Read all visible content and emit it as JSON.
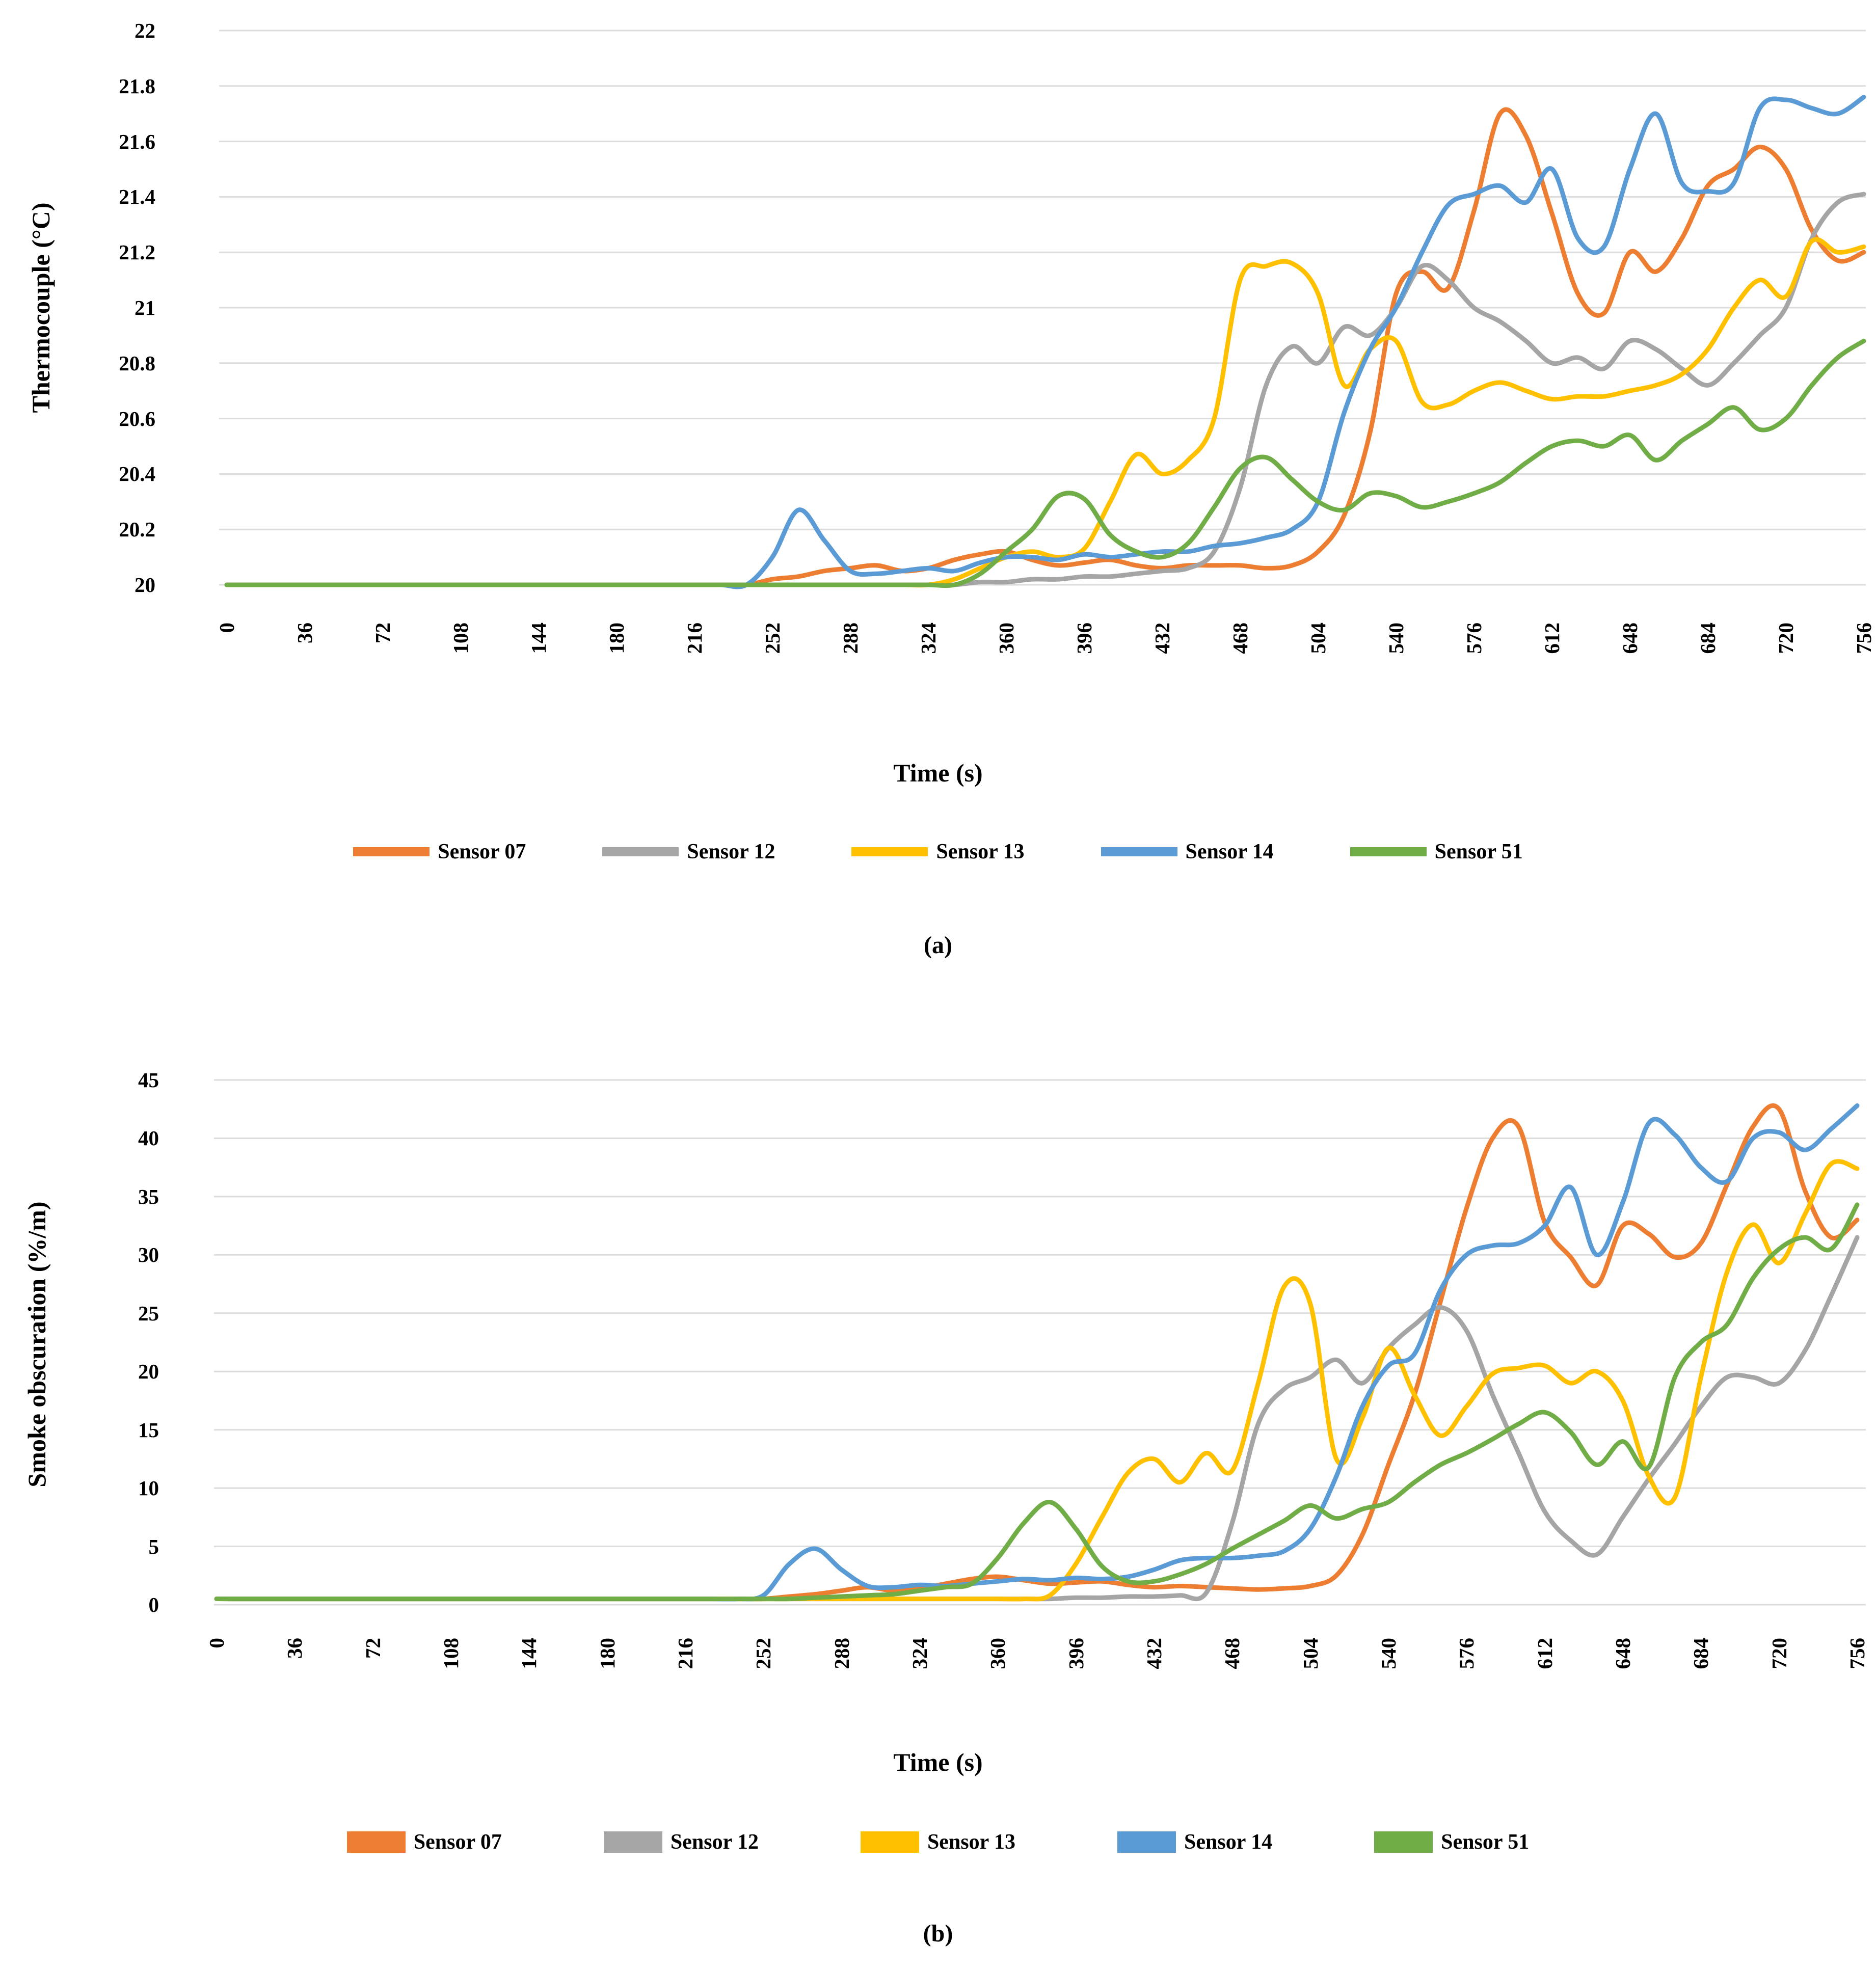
{
  "figure": {
    "background": "#ffffff",
    "text_color": "#000000",
    "gridline_color": "#DCDCDC"
  },
  "chart_data": [
    {
      "id": "a",
      "type": "line",
      "caption": "(a)",
      "xlabel": "Time (s)",
      "ylabel": "Thermocouple (°C)",
      "ylim": [
        20,
        22
      ],
      "xlim": [
        0,
        756
      ],
      "grid": true,
      "legend_position": "bottom",
      "y_tick_values": [
        22,
        21.8,
        21.6,
        21.4,
        21.2,
        21,
        20.8,
        20.6,
        20.4,
        20.2,
        20
      ],
      "y_tick_labels": [
        "22",
        "21.8",
        "21.6",
        "21.4",
        "21.2",
        "21",
        "20.8",
        "20.6",
        "20.4",
        "20.2",
        "20"
      ],
      "x_tick_values": [
        0,
        36,
        72,
        108,
        144,
        180,
        216,
        252,
        288,
        324,
        360,
        396,
        432,
        468,
        504,
        540,
        576,
        612,
        648,
        684,
        720,
        756
      ],
      "x_tick_labels": [
        "0",
        "36",
        "72",
        "108",
        "144",
        "180",
        "216",
        "252",
        "288",
        "324",
        "360",
        "396",
        "432",
        "468",
        "504",
        "540",
        "576",
        "612",
        "648",
        "684",
        "720",
        "756"
      ],
      "x": [
        0,
        12,
        24,
        36,
        48,
        60,
        72,
        84,
        96,
        108,
        120,
        132,
        144,
        156,
        168,
        180,
        192,
        204,
        216,
        228,
        240,
        252,
        264,
        276,
        288,
        300,
        312,
        324,
        336,
        348,
        360,
        372,
        384,
        396,
        408,
        420,
        432,
        444,
        456,
        468,
        480,
        492,
        504,
        516,
        528,
        540,
        552,
        564,
        576,
        588,
        600,
        612,
        624,
        636,
        648,
        660,
        672,
        684,
        696,
        708,
        720,
        732,
        744,
        756
      ],
      "series": [
        {
          "name": "Sensor 07",
          "color": "#ED7D31",
          "values": [
            20,
            20,
            20,
            20,
            20,
            20,
            20,
            20,
            20,
            20,
            20,
            20,
            20,
            20,
            20,
            20,
            20,
            20,
            20,
            20,
            20,
            20.02,
            20.03,
            20.05,
            20.06,
            20.07,
            20.05,
            20.06,
            20.09,
            20.11,
            20.12,
            20.09,
            20.07,
            20.08,
            20.09,
            20.07,
            20.06,
            20.07,
            20.07,
            20.07,
            20.06,
            20.07,
            20.12,
            20.25,
            20.55,
            21.05,
            21.13,
            21.07,
            21.35,
            21.7,
            21.62,
            21.34,
            21.05,
            20.98,
            21.2,
            21.13,
            21.25,
            21.44,
            21.5,
            21.58,
            21.5,
            21.28,
            21.17,
            21.2
          ]
        },
        {
          "name": "Sensor 12",
          "color": "#A5A5A5",
          "values": [
            20,
            20,
            20,
            20,
            20,
            20,
            20,
            20,
            20,
            20,
            20,
            20,
            20,
            20,
            20,
            20,
            20,
            20,
            20,
            20,
            20,
            20,
            20,
            20,
            20,
            20,
            20,
            20,
            20,
            20.01,
            20.01,
            20.02,
            20.02,
            20.03,
            20.03,
            20.04,
            20.05,
            20.06,
            20.12,
            20.35,
            20.72,
            20.86,
            20.8,
            20.93,
            20.9,
            21.0,
            21.15,
            21.1,
            21.0,
            20.95,
            20.88,
            20.8,
            20.82,
            20.78,
            20.88,
            20.85,
            20.78,
            20.72,
            20.8,
            20.9,
            21.0,
            21.25,
            21.38,
            21.41
          ]
        },
        {
          "name": "Sensor 13",
          "color": "#FFC000",
          "values": [
            20,
            20,
            20,
            20,
            20,
            20,
            20,
            20,
            20,
            20,
            20,
            20,
            20,
            20,
            20,
            20,
            20,
            20,
            20,
            20,
            20,
            20,
            20,
            20,
            20,
            20,
            20,
            20,
            20.02,
            20.06,
            20.1,
            20.12,
            20.1,
            20.13,
            20.3,
            20.47,
            20.4,
            20.45,
            20.6,
            21.1,
            21.15,
            21.16,
            21.05,
            20.72,
            20.85,
            20.88,
            20.66,
            20.65,
            20.7,
            20.73,
            20.7,
            20.67,
            20.68,
            20.68,
            20.7,
            20.72,
            20.76,
            20.85,
            21.0,
            21.1,
            21.04,
            21.24,
            21.2,
            21.22
          ]
        },
        {
          "name": "Sensor 14",
          "color": "#5B9BD5",
          "values": [
            20,
            20,
            20,
            20,
            20,
            20,
            20,
            20,
            20,
            20,
            20,
            20,
            20,
            20,
            20,
            20,
            20,
            20,
            20,
            20,
            20,
            20.1,
            20.27,
            20.16,
            20.05,
            20.04,
            20.05,
            20.06,
            20.05,
            20.08,
            20.1,
            20.1,
            20.09,
            20.11,
            20.1,
            20.11,
            20.12,
            20.12,
            20.14,
            20.15,
            20.17,
            20.2,
            20.3,
            20.62,
            20.85,
            21.0,
            21.2,
            21.37,
            21.41,
            21.44,
            21.38,
            21.5,
            21.25,
            21.22,
            21.5,
            21.7,
            21.45,
            21.42,
            21.45,
            21.72,
            21.75,
            21.72,
            21.7,
            21.76
          ]
        },
        {
          "name": "Sensor 51",
          "color": "#70AD47",
          "values": [
            20,
            20,
            20,
            20,
            20,
            20,
            20,
            20,
            20,
            20,
            20,
            20,
            20,
            20,
            20,
            20,
            20,
            20,
            20,
            20,
            20,
            20,
            20,
            20,
            20,
            20,
            20,
            20,
            20,
            20.04,
            20.12,
            20.2,
            20.32,
            20.31,
            20.18,
            20.12,
            20.1,
            20.15,
            20.28,
            20.42,
            20.46,
            20.38,
            20.3,
            20.27,
            20.33,
            20.32,
            20.28,
            20.3,
            20.33,
            20.37,
            20.44,
            20.5,
            20.52,
            20.5,
            20.54,
            20.45,
            20.52,
            20.58,
            20.64,
            20.56,
            20.6,
            20.72,
            20.82,
            20.88
          ]
        }
      ]
    },
    {
      "id": "b",
      "type": "line",
      "caption": "(b)",
      "xlabel": "Time (s)",
      "ylabel": "Smoke obscuration (%/m)",
      "ylim": [
        0,
        45
      ],
      "xlim": [
        0,
        756
      ],
      "grid": true,
      "legend_position": "bottom",
      "y_tick_values": [
        45,
        40,
        35,
        30,
        25,
        20,
        15,
        10,
        5,
        0
      ],
      "y_tick_labels": [
        "45",
        "40",
        "35",
        "30",
        "25",
        "20",
        "15",
        "10",
        "5",
        "0"
      ],
      "x_tick_values": [
        0,
        36,
        72,
        108,
        144,
        180,
        216,
        252,
        288,
        324,
        360,
        396,
        432,
        468,
        504,
        540,
        576,
        612,
        648,
        684,
        720,
        756
      ],
      "x_tick_labels": [
        "0",
        "36",
        "72",
        "108",
        "144",
        "180",
        "216",
        "252",
        "288",
        "324",
        "360",
        "396",
        "432",
        "468",
        "504",
        "540",
        "576",
        "612",
        "648",
        "684",
        "720",
        "756"
      ],
      "x": [
        0,
        12,
        24,
        36,
        48,
        60,
        72,
        84,
        96,
        108,
        120,
        132,
        144,
        156,
        168,
        180,
        192,
        204,
        216,
        228,
        240,
        252,
        264,
        276,
        288,
        300,
        312,
        324,
        336,
        348,
        360,
        372,
        384,
        396,
        408,
        420,
        432,
        444,
        456,
        468,
        480,
        492,
        504,
        516,
        528,
        540,
        552,
        564,
        576,
        588,
        600,
        612,
        624,
        636,
        648,
        660,
        672,
        684,
        696,
        708,
        720,
        732,
        744,
        756
      ],
      "series": [
        {
          "name": "Sensor 07",
          "color": "#ED7D31",
          "values": [
            0.5,
            0.5,
            0.5,
            0.5,
            0.5,
            0.5,
            0.5,
            0.5,
            0.5,
            0.5,
            0.5,
            0.5,
            0.5,
            0.5,
            0.5,
            0.5,
            0.5,
            0.5,
            0.5,
            0.5,
            0.5,
            0.5,
            0.7,
            0.9,
            1.2,
            1.5,
            1.2,
            1.4,
            1.8,
            2.2,
            2.4,
            2.1,
            1.8,
            1.9,
            2,
            1.7,
            1.5,
            1.6,
            1.5,
            1.4,
            1.3,
            1.4,
            1.6,
            2.5,
            6,
            12,
            18,
            26,
            34,
            40,
            41,
            32.8,
            29.8,
            27.4,
            32.5,
            31.8,
            29.8,
            31,
            36,
            41,
            42.5,
            35.5,
            31.5,
            33
          ]
        },
        {
          "name": "Sensor 12",
          "color": "#A5A5A5",
          "values": [
            0.5,
            0.5,
            0.5,
            0.5,
            0.5,
            0.5,
            0.5,
            0.5,
            0.5,
            0.5,
            0.5,
            0.5,
            0.5,
            0.5,
            0.5,
            0.5,
            0.5,
            0.5,
            0.5,
            0.5,
            0.5,
            0.5,
            0.5,
            0.5,
            0.5,
            0.5,
            0.5,
            0.5,
            0.5,
            0.5,
            0.5,
            0.5,
            0.5,
            0.6,
            0.6,
            0.7,
            0.7,
            0.8,
            1,
            7,
            15.5,
            18.5,
            19.5,
            21,
            19,
            22,
            24,
            25.5,
            23.5,
            18,
            13,
            8,
            5.5,
            4.3,
            7.5,
            10.8,
            13.8,
            17,
            19.5,
            19.5,
            19,
            21.8,
            26.5,
            31.5
          ]
        },
        {
          "name": "Sensor 13",
          "color": "#FFC000",
          "values": [
            0.5,
            0.5,
            0.5,
            0.5,
            0.5,
            0.5,
            0.5,
            0.5,
            0.5,
            0.5,
            0.5,
            0.5,
            0.5,
            0.5,
            0.5,
            0.5,
            0.5,
            0.5,
            0.5,
            0.5,
            0.5,
            0.5,
            0.5,
            0.5,
            0.5,
            0.5,
            0.5,
            0.5,
            0.5,
            0.5,
            0.5,
            0.5,
            0.8,
            3.5,
            7.5,
            11.3,
            12.5,
            10.5,
            13,
            11.5,
            19,
            27.3,
            25.8,
            12.5,
            16,
            22,
            18,
            14.5,
            17,
            19.8,
            20.3,
            20.5,
            19,
            20,
            17.5,
            11,
            9.2,
            19.5,
            28.5,
            32.6,
            29.3,
            33.5,
            37.8,
            37.4
          ]
        },
        {
          "name": "Sensor 14",
          "color": "#5B9BD5",
          "values": [
            0.5,
            0.5,
            0.5,
            0.5,
            0.5,
            0.5,
            0.5,
            0.5,
            0.5,
            0.5,
            0.5,
            0.5,
            0.5,
            0.5,
            0.5,
            0.5,
            0.5,
            0.5,
            0.5,
            0.5,
            0.5,
            0.8,
            3.5,
            4.8,
            3,
            1.6,
            1.5,
            1.7,
            1.6,
            1.8,
            2,
            2.2,
            2.1,
            2.3,
            2.2,
            2.4,
            3,
            3.8,
            4,
            4,
            4.2,
            4.6,
            6.5,
            11,
            17,
            20.5,
            21.5,
            27,
            30,
            30.8,
            31,
            32.5,
            35.8,
            30,
            34.5,
            41.3,
            40.3,
            37.5,
            36.3,
            40,
            40.5,
            39,
            40.8,
            42.8
          ]
        },
        {
          "name": "Sensor 51",
          "color": "#70AD47",
          "values": [
            0.5,
            0.5,
            0.5,
            0.5,
            0.5,
            0.5,
            0.5,
            0.5,
            0.5,
            0.5,
            0.5,
            0.5,
            0.5,
            0.5,
            0.5,
            0.5,
            0.5,
            0.5,
            0.5,
            0.5,
            0.5,
            0.5,
            0.5,
            0.6,
            0.7,
            0.8,
            0.9,
            1.2,
            1.5,
            1.8,
            4,
            7,
            8.8,
            6.5,
            3.3,
            2,
            2,
            2.6,
            3.5,
            4.8,
            6,
            7.2,
            8.5,
            7.4,
            8.2,
            8.8,
            10.5,
            12,
            13,
            14.2,
            15.5,
            16.5,
            14.8,
            12,
            14,
            11.8,
            19.5,
            22.5,
            24,
            28,
            30.5,
            31.5,
            30.5,
            34.3
          ]
        }
      ]
    }
  ]
}
